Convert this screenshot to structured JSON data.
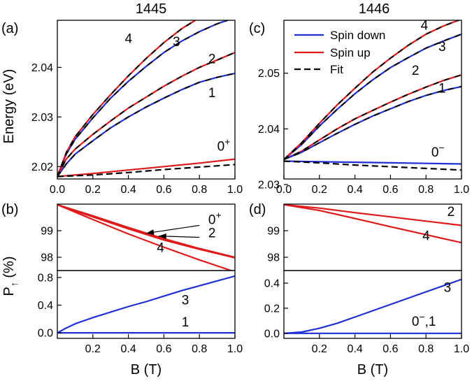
{
  "figure": {
    "col_titles": [
      "1445",
      "1446"
    ],
    "xlabel": "B (T)",
    "ylabel_top": "Energy (eV)",
    "ylabel_bottom": "P",
    "ylabel_bottom_sub": "↑",
    "ylabel_bottom_unit": " (%)"
  },
  "legend": [
    {
      "label": "Spin down",
      "color": "#1f2fd6",
      "style": "solid"
    },
    {
      "label": "Spin up",
      "color": "#e01a1a",
      "style": "solid"
    },
    {
      "label": "Fit",
      "color": "#000000",
      "style": "dashed"
    }
  ],
  "chart_data": [
    {
      "id": "a",
      "panel_label": "(a)",
      "title": "1445",
      "type": "line",
      "xlim": [
        0,
        1.0
      ],
      "ylim": [
        2.0175,
        2.0495
      ],
      "xticks": [
        0.0,
        0.2,
        0.4,
        0.6,
        0.8,
        1.0
      ],
      "yticks": [
        2.02,
        2.03,
        2.04
      ],
      "xticklabels": [
        "0.0",
        "0.2",
        "0.4",
        "0.6",
        "0.8",
        "1.0"
      ],
      "yticklabels": [
        "2.02",
        "2.03",
        "2.04"
      ],
      "ylabel": "Energy (eV)",
      "series": [
        {
          "color": "#1f2fd6",
          "fit": true,
          "x": [
            0,
            0.05,
            0.1,
            0.2,
            0.3,
            0.4,
            0.5,
            0.6,
            0.7,
            0.8,
            0.9,
            1.0
          ],
          "y": [
            2.018,
            2.0205,
            2.0225,
            2.0252,
            2.0278,
            2.03,
            2.032,
            2.0338,
            2.0355,
            2.037,
            2.038,
            2.0388
          ]
        },
        {
          "color": "#e01a1a",
          "fit": true,
          "x": [
            0,
            0.05,
            0.1,
            0.2,
            0.3,
            0.4,
            0.5,
            0.6,
            0.7,
            0.8,
            0.9,
            1.0
          ],
          "y": [
            2.018,
            2.0215,
            2.0235,
            2.0265,
            2.0292,
            2.0318,
            2.034,
            2.0362,
            2.0382,
            2.04,
            2.0415,
            2.043
          ]
        },
        {
          "color": "#1f2fd6",
          "fit": true,
          "x": [
            0,
            0.05,
            0.1,
            0.2,
            0.3,
            0.4,
            0.5,
            0.6,
            0.7,
            0.8,
            0.9,
            1.0
          ],
          "y": [
            2.018,
            2.0225,
            2.0255,
            2.0298,
            2.0338,
            2.0372,
            2.0402,
            2.043,
            2.0453,
            2.0472,
            2.0488,
            2.05
          ]
        },
        {
          "color": "#e01a1a",
          "fit": true,
          "x": [
            0,
            0.05,
            0.1,
            0.2,
            0.3,
            0.4,
            0.5,
            0.6,
            0.7,
            0.8,
            0.9,
            1.0
          ],
          "y": [
            2.018,
            2.0228,
            2.026,
            2.0305,
            2.0345,
            2.0383,
            2.0418,
            2.045,
            2.0478,
            2.05,
            2.052,
            2.054
          ]
        },
        {
          "color": "#e01a1a",
          "fit": false,
          "x": [
            0,
            0.2,
            0.4,
            0.6,
            0.8,
            1.0
          ],
          "y": [
            2.018,
            2.0186,
            2.0193,
            2.02,
            2.0207,
            2.0215
          ]
        },
        {
          "color": "#000000",
          "dashed": true,
          "x": [
            0,
            0.2,
            0.4,
            0.6,
            0.8,
            1.0
          ],
          "y": [
            2.018,
            2.0183,
            2.0188,
            2.0194,
            2.0199,
            2.0204
          ]
        }
      ],
      "labels": [
        {
          "text": "4",
          "x": 0.38,
          "y": 2.0449
        },
        {
          "text": "3",
          "x": 0.65,
          "y": 2.0443
        },
        {
          "text": "2",
          "x": 0.85,
          "y": 2.0408
        },
        {
          "text": "1",
          "x": 0.85,
          "y": 2.034
        },
        {
          "text": "0",
          "sup": "+",
          "x": 0.9,
          "y": 2.0232
        }
      ]
    },
    {
      "id": "c",
      "panel_label": "(c)",
      "title": "1446",
      "type": "line",
      "xlim": [
        0,
        1.0
      ],
      "ylim": [
        2.031,
        2.0595
      ],
      "xticks": [
        0.0,
        0.2,
        0.4,
        0.6,
        0.8,
        1.0
      ],
      "yticks": [
        2.03,
        2.04,
        2.05
      ],
      "xticklabels": [
        "0.0",
        "0.2",
        "0.4",
        "0.6",
        "0.8",
        "1.0"
      ],
      "yticklabels": [
        "2.03",
        "2.04",
        "2.05"
      ],
      "series": [
        {
          "color": "#e01a1a",
          "fit": true,
          "x": [
            0,
            0.1,
            0.2,
            0.3,
            0.4,
            0.5,
            0.6,
            0.7,
            0.8,
            0.9,
            1.0
          ],
          "y": [
            2.0345,
            2.036,
            2.038,
            2.04,
            2.0418,
            2.0433,
            2.0448,
            2.0462,
            2.0475,
            2.0487,
            2.0497
          ]
        },
        {
          "color": "#1f2fd6",
          "fit": true,
          "x": [
            0,
            0.1,
            0.2,
            0.3,
            0.4,
            0.5,
            0.6,
            0.7,
            0.8,
            0.9,
            1.0
          ],
          "y": [
            2.0345,
            2.0358,
            2.0375,
            2.0392,
            2.0408,
            2.0423,
            2.0436,
            2.0449,
            2.046,
            2.0469,
            2.0476
          ]
        },
        {
          "color": "#1f2fd6",
          "fit": true,
          "x": [
            0,
            0.1,
            0.2,
            0.3,
            0.4,
            0.5,
            0.6,
            0.7,
            0.8,
            0.9,
            1.0
          ],
          "y": [
            2.0345,
            2.0372,
            2.0405,
            2.0435,
            2.0463,
            2.0488,
            2.051,
            2.0528,
            2.0545,
            2.0558,
            2.057
          ]
        },
        {
          "color": "#e01a1a",
          "fit": true,
          "x": [
            0,
            0.1,
            0.2,
            0.3,
            0.4,
            0.5,
            0.6,
            0.7,
            0.8,
            0.9,
            1.0
          ],
          "y": [
            2.0345,
            2.0375,
            2.041,
            2.0443,
            2.0473,
            2.0502,
            2.0527,
            2.055,
            2.057,
            2.0585,
            2.0597
          ]
        },
        {
          "color": "#1f2fd6",
          "fit": false,
          "x": [
            0,
            0.2,
            0.4,
            0.6,
            0.8,
            1.0
          ],
          "y": [
            2.0342,
            2.0341,
            2.034,
            2.0339,
            2.0338,
            2.0337
          ]
        },
        {
          "color": "#000000",
          "dashed": true,
          "x": [
            0,
            0.2,
            0.4,
            0.6,
            0.8,
            1.0
          ],
          "y": [
            2.0342,
            2.0339,
            2.0335,
            2.0332,
            2.0329,
            2.0326
          ]
        }
      ],
      "labels": [
        {
          "text": "4",
          "x": 0.77,
          "y": 2.0578
        },
        {
          "text": "3",
          "x": 0.87,
          "y": 2.054
        },
        {
          "text": "2",
          "x": 0.72,
          "y": 2.0497
        },
        {
          "text": "1",
          "x": 0.87,
          "y": 2.0465
        },
        {
          "text": "0",
          "sup": "−",
          "x": 0.83,
          "y": 2.035
        }
      ]
    },
    {
      "id": "b_upper",
      "panel_label": "(b)",
      "type": "line",
      "xlim": [
        0,
        1.0
      ],
      "ylim": [
        97.5,
        100.0
      ],
      "yticks": [
        98,
        99
      ],
      "yticklabels": [
        "98",
        "99"
      ],
      "series": [
        {
          "color": "#e01a1a",
          "x": [
            0,
            0.2,
            0.4,
            0.6,
            0.8,
            1.0
          ],
          "y": [
            99.98,
            99.56,
            99.12,
            98.7,
            98.33,
            98.0
          ]
        },
        {
          "color": "#e01a1a",
          "x": [
            0,
            0.2,
            0.4,
            0.6,
            0.8,
            1.0
          ],
          "y": [
            99.98,
            99.52,
            99.07,
            98.65,
            98.3,
            97.98
          ]
        },
        {
          "color": "#e01a1a",
          "x": [
            0,
            0.2,
            0.4,
            0.6,
            0.8,
            1.0
          ],
          "y": [
            99.98,
            99.42,
            98.88,
            98.38,
            97.9,
            97.45
          ]
        }
      ],
      "labels": [
        {
          "text": "0",
          "sup": "+",
          "x": 0.85,
          "y": 99.25
        },
        {
          "text": "2",
          "x": 0.85,
          "y": 98.75
        },
        {
          "text": "4",
          "x": 0.56,
          "y": 98.2
        }
      ],
      "arrows": [
        {
          "x1": 0.8,
          "y1": 99.2,
          "x2": 0.5,
          "y2": 98.9
        },
        {
          "x1": 0.8,
          "y1": 98.75,
          "x2": 0.57,
          "y2": 98.8
        }
      ]
    },
    {
      "id": "b_lower",
      "type": "line",
      "xlim": [
        0,
        1.0
      ],
      "ylim": [
        -0.08,
        0.9
      ],
      "xticks": [
        0.2,
        0.4,
        0.6,
        0.8,
        1.0
      ],
      "xticklabels": [
        "0.2",
        "0.4",
        "0.6",
        "0.8",
        "1.0"
      ],
      "yticks": [
        0.0,
        0.4,
        0.8
      ],
      "yticklabels": [
        "0.0",
        "0.4",
        "0.8"
      ],
      "xlabel": "B (T)",
      "series": [
        {
          "color": "#1f2fd6",
          "x": [
            0,
            0.05,
            0.1,
            0.2,
            0.3,
            0.4,
            0.5,
            0.6,
            0.7,
            0.8,
            0.9,
            1.0
          ],
          "y": [
            0.0,
            0.07,
            0.13,
            0.22,
            0.3,
            0.38,
            0.45,
            0.53,
            0.61,
            0.68,
            0.75,
            0.82
          ]
        },
        {
          "color": "#1f2fd6",
          "x": [
            0,
            1.0
          ],
          "y": [
            0.0,
            0.0
          ]
        }
      ],
      "labels": [
        {
          "text": "3",
          "x": 0.7,
          "y": 0.41
        },
        {
          "text": "1",
          "x": 0.7,
          "y": 0.09
        }
      ]
    },
    {
      "id": "d_upper",
      "panel_label": "(d)",
      "type": "line",
      "xlim": [
        0,
        1.0
      ],
      "ylim": [
        97.5,
        100.0
      ],
      "yticks": [
        98,
        99
      ],
      "yticklabels": [
        "98",
        "99"
      ],
      "series": [
        {
          "color": "#e01a1a",
          "x": [
            0,
            0.2,
            0.4,
            0.6,
            0.8,
            1.0
          ],
          "y": [
            99.98,
            99.85,
            99.68,
            99.52,
            99.36,
            99.2
          ]
        },
        {
          "color": "#e01a1a",
          "x": [
            0,
            0.2,
            0.4,
            0.6,
            0.8,
            1.0
          ],
          "y": [
            99.98,
            99.76,
            99.46,
            99.15,
            98.85,
            98.55
          ]
        }
      ],
      "labels": [
        {
          "text": "2",
          "x": 0.92,
          "y": 99.55
        },
        {
          "text": "4",
          "x": 0.78,
          "y": 98.65
        }
      ]
    },
    {
      "id": "d_lower",
      "type": "line",
      "xlim": [
        0,
        1.0
      ],
      "ylim": [
        -0.04,
        0.5
      ],
      "xticks": [
        0.2,
        0.4,
        0.6,
        0.8,
        1.0
      ],
      "xticklabels": [
        "0.2",
        "0.4",
        "0.6",
        "0.8",
        "1.0"
      ],
      "yticks": [
        0.0,
        0.2,
        0.4
      ],
      "yticklabels": [
        "0.0",
        "0.2",
        "0.4"
      ],
      "xlabel": "B (T)",
      "series": [
        {
          "color": "#1f2fd6",
          "x": [
            0,
            0.1,
            0.2,
            0.3,
            0.4,
            0.5,
            0.6,
            0.7,
            0.8,
            0.9,
            1.0
          ],
          "y": [
            0.0,
            0.01,
            0.04,
            0.08,
            0.13,
            0.18,
            0.23,
            0.28,
            0.33,
            0.38,
            0.43
          ]
        },
        {
          "color": "#1f2fd6",
          "x": [
            0,
            1.0
          ],
          "y": [
            0.0,
            0.0
          ]
        }
      ],
      "labels": [
        {
          "text": "3",
          "x": 0.9,
          "y": 0.33
        },
        {
          "text": "0",
          "sup": "−",
          "tail": ",1",
          "x": 0.72,
          "y": 0.06
        }
      ]
    }
  ]
}
